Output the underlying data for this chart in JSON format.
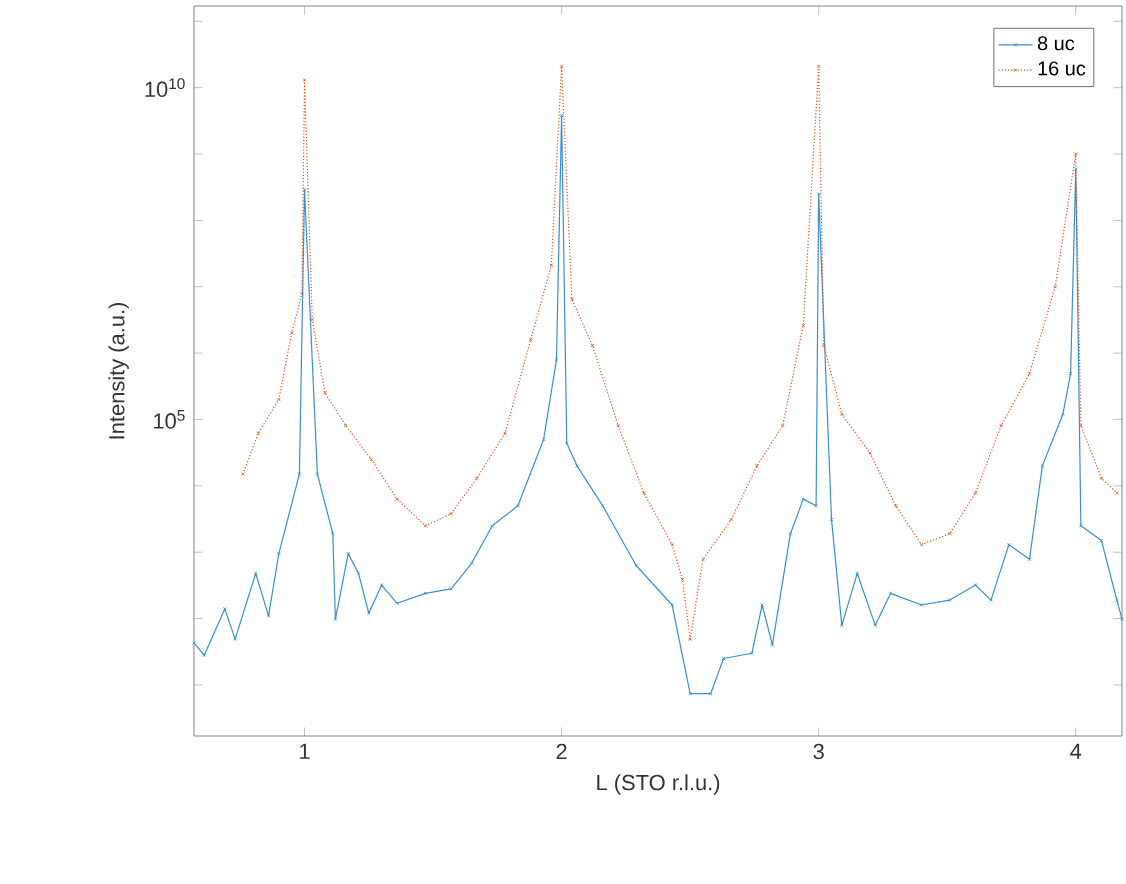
{
  "chart_data": {
    "type": "line",
    "xlabel": "L (STO r.l.u.)",
    "ylabel": "Intensity (a.u.)",
    "log": "y",
    "xlim": [
      0.57,
      4.18
    ],
    "ylim": [
      1.7,
      170000000000.0
    ],
    "xticks": [
      1,
      2,
      3,
      4
    ],
    "yticks": [
      {
        "value": 10,
        "label": null
      },
      {
        "value": 100,
        "label": null
      },
      {
        "value": 1000,
        "label": null
      },
      {
        "value": 10000,
        "label": null
      },
      {
        "value": 100000,
        "label": "10$^{5}$"
      },
      {
        "value": 1000000,
        "label": null
      },
      {
        "value": 10000000,
        "label": null
      },
      {
        "value": 100000000,
        "label": null
      },
      {
        "value": 1000000000,
        "label": null
      },
      {
        "value": 10000000000,
        "label": "10$^{10}$"
      },
      {
        "value": 100000000000,
        "label": null
      }
    ],
    "grid": false,
    "legend": "top right",
    "marker": "cross",
    "series": [
      {
        "name": "8 uc",
        "color": "#3a8fd0",
        "line_style": "solid",
        "x": [
          0.57,
          0.61,
          0.69,
          0.73,
          0.81,
          0.86,
          0.9,
          0.98,
          1.0,
          1.05,
          1.11,
          1.12,
          1.17,
          1.21,
          1.25,
          1.3,
          1.36,
          1.47,
          1.57,
          1.65,
          1.73,
          1.83,
          1.93,
          1.98,
          2.0,
          2.02,
          2.06,
          2.16,
          2.29,
          2.43,
          2.5,
          2.58,
          2.63,
          2.74,
          2.78,
          2.82,
          2.89,
          2.94,
          2.99,
          3.0,
          3.05,
          3.09,
          3.15,
          3.22,
          3.28,
          3.4,
          3.51,
          3.61,
          3.67,
          3.74,
          3.82,
          3.87,
          3.95,
          3.98,
          4.0,
          4.02,
          4.1,
          4.16,
          4.18
        ],
        "values": [
          43,
          28,
          140,
          49,
          480,
          110,
          950,
          15000,
          290000000,
          15000,
          1900,
          98,
          950,
          480,
          120,
          320,
          170,
          240,
          280,
          680,
          2500,
          5000,
          50000,
          790000,
          3800000000,
          44000,
          20000,
          5000,
          630,
          160,
          7.4,
          7.4,
          25,
          30,
          160,
          40,
          1900,
          6300,
          5000,
          250000000,
          3100,
          79,
          480,
          79,
          240,
          160,
          190,
          320,
          190,
          1300,
          780,
          20000,
          120000,
          490000,
          590000000,
          2500,
          1500,
          190,
          98
        ]
      },
      {
        "name": "16 uc",
        "color": "#d95319",
        "line_style": "dotted",
        "x": [
          0.76,
          0.82,
          0.9,
          0.95,
          0.99,
          1.0,
          1.03,
          1.08,
          1.16,
          1.26,
          1.36,
          1.47,
          1.57,
          1.67,
          1.78,
          1.88,
          1.96,
          2.0,
          2.04,
          2.12,
          2.22,
          2.32,
          2.43,
          2.47,
          2.5,
          2.55,
          2.66,
          2.76,
          2.86,
          2.94,
          3.0,
          3.02,
          3.09,
          3.2,
          3.3,
          3.4,
          3.51,
          3.61,
          3.71,
          3.82,
          3.92,
          4.0,
          4.02,
          4.1,
          4.16
        ],
        "values": [
          15000,
          62000,
          200000,
          2000000,
          7900000,
          13000000000,
          3200000,
          250000,
          81000,
          25000,
          6300,
          2500,
          3800,
          13000,
          62000,
          1600000,
          21000000,
          21000000000,
          6500000,
          1300000,
          81000,
          7800,
          1300,
          390,
          49,
          780,
          3100,
          20000,
          81000,
          2600000,
          21000000000,
          1300000,
          120000,
          31000,
          5000,
          1300,
          1900,
          7800,
          81000,
          490000,
          10000000,
          1000000000,
          81000,
          13000,
          7800
        ]
      }
    ]
  }
}
